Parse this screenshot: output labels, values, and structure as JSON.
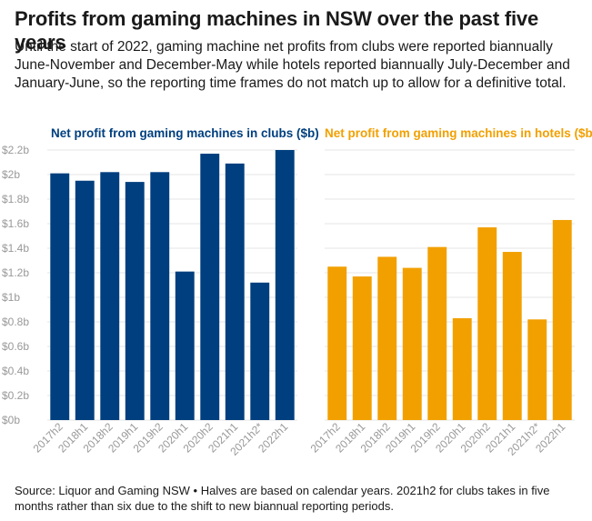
{
  "title": "Profits from gaming machines in NSW over the past five years",
  "subtitle": "Until the start of 2022, gaming machine net profits from clubs were reported biannually June-November and December-May while hotels reported biannually July-December and January-June, so the reporting time frames do not match up to allow for a definitive total.",
  "source": "Source: Liquor and Gaming NSW • Halves are based on calendar years. 2021h2 for clubs takes in five months rather than six due to the shift to new biannual reporting periods.",
  "colors": {
    "clubs": "#003f7f",
    "hotels": "#f2a000",
    "axis_text": "#999999",
    "grid": "#e6e6e6"
  },
  "chart_data": [
    {
      "type": "bar",
      "title": "Net profit from gaming machines in clubs ($b)",
      "categories": [
        "2017h2",
        "2018h1",
        "2018h2",
        "2019h1",
        "2019h2",
        "2020h1",
        "2020h2",
        "2021h1",
        "2021h2*",
        "2022h1"
      ],
      "values": [
        2.01,
        1.95,
        2.02,
        1.94,
        2.02,
        1.21,
        2.17,
        2.09,
        1.12,
        2.2
      ],
      "ylim": [
        0,
        2.2
      ],
      "yticks": [
        "$0b",
        "$0.2b",
        "$0.4b",
        "$0.6b",
        "$0.8b",
        "$1b",
        "$1.2b",
        "$1.4b",
        "$1.6b",
        "$1.8b",
        "$2b",
        "$2.2b"
      ],
      "color": "#003f7f",
      "grid": true
    },
    {
      "type": "bar",
      "title": "Net profit from gaming machines in hotels ($b)",
      "categories": [
        "2017h2",
        "2018h1",
        "2018h2",
        "2019h1",
        "2019h2",
        "2020h1",
        "2020h2",
        "2021h1",
        "2021h2*",
        "2022h1"
      ],
      "values": [
        1.25,
        1.17,
        1.33,
        1.24,
        1.41,
        0.83,
        1.57,
        1.37,
        0.82,
        1.63
      ],
      "ylim": [
        0,
        2.2
      ],
      "color": "#f2a000",
      "grid": true
    }
  ]
}
